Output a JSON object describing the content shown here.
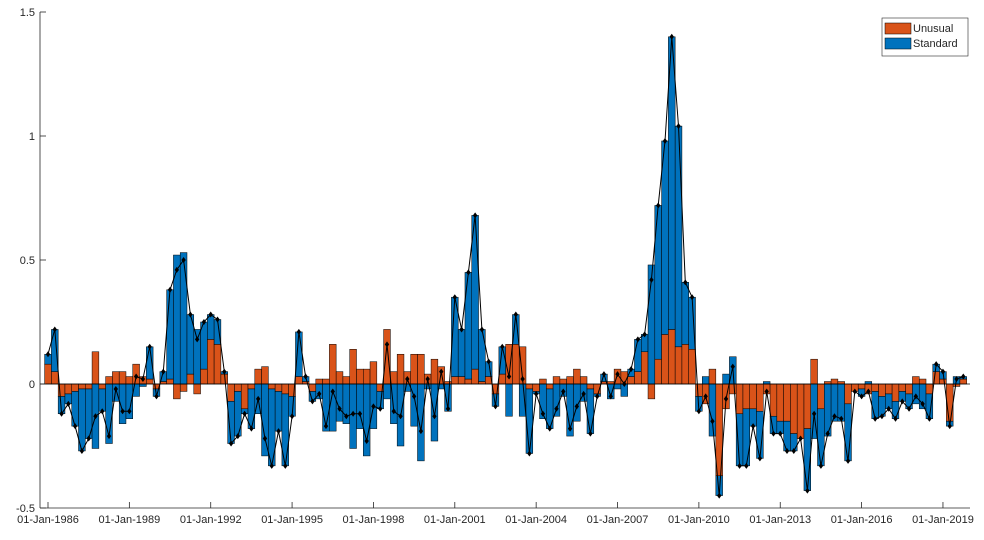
{
  "chart_data": {
    "type": "stacked-bar-line",
    "categories": [
      "01-Jan-1986",
      null,
      null,
      null,
      null,
      null,
      null,
      null,
      null,
      null,
      null,
      null,
      "01-Jan-1989",
      null,
      null,
      null,
      null,
      null,
      null,
      null,
      null,
      null,
      null,
      null,
      "01-Jan-1992",
      null,
      null,
      null,
      null,
      null,
      null,
      null,
      null,
      null,
      null,
      null,
      "01-Jan-1995",
      null,
      null,
      null,
      null,
      null,
      null,
      null,
      null,
      null,
      null,
      null,
      "01-Jan-1998",
      null,
      null,
      null,
      null,
      null,
      null,
      null,
      null,
      null,
      null,
      null,
      "01-Jan-2001",
      null,
      null,
      null,
      null,
      null,
      null,
      null,
      null,
      null,
      null,
      null,
      "01-Jan-2004",
      null,
      null,
      null,
      null,
      null,
      null,
      null,
      null,
      null,
      null,
      null,
      "01-Jan-2007",
      null,
      null,
      null,
      null,
      null,
      null,
      null,
      null,
      null,
      null,
      null,
      "01-Jan-2010",
      null,
      null,
      null,
      null,
      null,
      null,
      null,
      null,
      null,
      null,
      null,
      "01-Jan-2013",
      null,
      null,
      null,
      null,
      null,
      null,
      null,
      null,
      null,
      null,
      null,
      "01-Jan-2016",
      null,
      null,
      null,
      null,
      null,
      null,
      null,
      null,
      null,
      null,
      null,
      "01-Jan-2019",
      null,
      null,
      null
    ],
    "series": [
      {
        "name": "Unusual",
        "color": "#d95319",
        "values": [
          0.08,
          0.05,
          -0.05,
          -0.04,
          -0.03,
          -0.02,
          -0.02,
          0.13,
          -0.02,
          0.03,
          0.05,
          0.05,
          0.03,
          0.08,
          0.03,
          0.02,
          -0.02,
          0.01,
          0.02,
          -0.06,
          -0.03,
          0.04,
          -0.04,
          0.06,
          0.18,
          0.16,
          0.04,
          -0.07,
          -0.03,
          -0.1,
          -0.02,
          0.06,
          0.07,
          -0.02,
          -0.03,
          -0.04,
          -0.05,
          0.03,
          0.01,
          -0.03,
          0.02,
          0.02,
          0.16,
          0.05,
          0.03,
          0.14,
          0.06,
          0.06,
          0.09,
          -0.03,
          0.22,
          0.05,
          0.12,
          0.05,
          0.12,
          0.12,
          0.04,
          0.1,
          0.07,
          0.01,
          0.03,
          0.03,
          0.02,
          0.06,
          0.01,
          0.03,
          -0.04,
          0.04,
          0.16,
          0.16,
          0.15,
          -0.02,
          -0.03,
          0.02,
          -0.02,
          0.03,
          0.02,
          0.03,
          0.06,
          0.03,
          -0.02,
          -0.04,
          0.01,
          0.01,
          0.06,
          0.05,
          0.03,
          0.05,
          0.13,
          -0.06,
          0.1,
          0.2,
          0.22,
          0.15,
          0.16,
          0.14,
          -0.05,
          -0.08,
          0.06,
          -0.37,
          -0.1,
          -0.04,
          -0.12,
          -0.1,
          -0.1,
          -0.11,
          -0.04,
          -0.13,
          -0.15,
          -0.15,
          -0.2,
          -0.22,
          -0.18,
          0.1,
          -0.1,
          0.01,
          0.02,
          0.01,
          -0.08,
          -0.03,
          -0.02,
          -0.04,
          -0.03,
          -0.05,
          -0.04,
          -0.07,
          -0.03,
          -0.04,
          0.03,
          0.02,
          -0.04,
          0.05,
          0.02,
          -0.15,
          -0.01,
          0.02
        ]
      },
      {
        "name": "Standard",
        "color": "#0072bd",
        "values": [
          0.04,
          0.17,
          -0.07,
          -0.04,
          -0.14,
          -0.25,
          -0.2,
          -0.26,
          -0.09,
          -0.24,
          -0.07,
          -0.16,
          -0.14,
          -0.05,
          -0.01,
          0.13,
          -0.03,
          0.04,
          0.36,
          0.52,
          0.53,
          0.24,
          0.22,
          0.19,
          0.1,
          0.1,
          0.01,
          -0.17,
          -0.18,
          -0.02,
          -0.16,
          -0.12,
          -0.29,
          -0.31,
          -0.16,
          -0.29,
          -0.08,
          0.18,
          0.02,
          -0.04,
          -0.06,
          -0.19,
          -0.19,
          -0.15,
          -0.16,
          -0.26,
          -0.18,
          -0.29,
          -0.18,
          -0.07,
          -0.06,
          -0.16,
          -0.25,
          -0.03,
          -0.17,
          -0.31,
          -0.02,
          -0.23,
          -0.02,
          -0.11,
          0.32,
          0.19,
          0.43,
          0.62,
          0.21,
          0.06,
          -0.05,
          0.11,
          -0.13,
          0.12,
          -0.13,
          -0.26,
          -0.01,
          -0.14,
          -0.16,
          -0.13,
          -0.05,
          -0.21,
          -0.15,
          -0.07,
          -0.18,
          -0.01,
          0.03,
          -0.06,
          -0.02,
          -0.05,
          0.03,
          0.13,
          0.07,
          0.48,
          0.62,
          0.78,
          1.18,
          0.89,
          0.25,
          0.21,
          -0.06,
          0.03,
          -0.21,
          -0.08,
          0.04,
          0.11,
          -0.21,
          -0.23,
          -0.07,
          -0.19,
          0.01,
          -0.07,
          -0.05,
          -0.12,
          -0.07,
          0,
          -0.25,
          -0.22,
          -0.23,
          -0.21,
          -0.15,
          -0.15,
          -0.23,
          0,
          -0.03,
          0.01,
          -0.11,
          -0.08,
          -0.06,
          -0.07,
          -0.04,
          -0.06,
          -0.08,
          -0.1,
          -0.1,
          0.03,
          0.03,
          -0.02,
          0.03,
          0.01
        ]
      }
    ],
    "ylim": [
      -0.5,
      1.5
    ],
    "yticks": [
      -0.5,
      0,
      0.5,
      1,
      1.5
    ],
    "legend": "upper right"
  }
}
